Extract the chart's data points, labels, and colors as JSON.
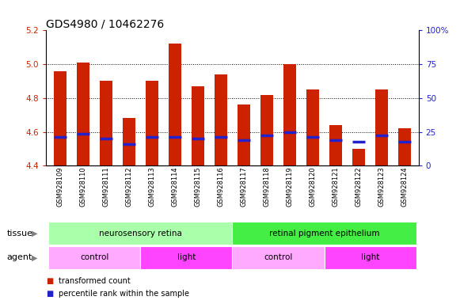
{
  "title": "GDS4980 / 10462276",
  "samples": [
    "GSM928109",
    "GSM928110",
    "GSM928111",
    "GSM928112",
    "GSM928113",
    "GSM928114",
    "GSM928115",
    "GSM928116",
    "GSM928117",
    "GSM928118",
    "GSM928119",
    "GSM928120",
    "GSM928121",
    "GSM928122",
    "GSM928123",
    "GSM928124"
  ],
  "bar_tops": [
    4.96,
    5.01,
    4.9,
    4.68,
    4.9,
    5.12,
    4.87,
    4.94,
    4.76,
    4.82,
    5.0,
    4.85,
    4.64,
    4.5,
    4.85,
    4.62
  ],
  "blue_vals": [
    4.57,
    4.59,
    4.56,
    4.53,
    4.57,
    4.57,
    4.56,
    4.57,
    4.55,
    4.58,
    4.6,
    4.57,
    4.55,
    4.54,
    4.58,
    4.54
  ],
  "bar_bottom": 4.4,
  "ylim_left": [
    4.4,
    5.2
  ],
  "ylim_right": [
    0,
    100
  ],
  "yticks_left": [
    4.4,
    4.6,
    4.8,
    5.0,
    5.2
  ],
  "yticks_right": [
    0,
    25,
    50,
    75,
    100
  ],
  "ytick_labels_right": [
    "0",
    "25",
    "50",
    "75",
    "100%"
  ],
  "bar_color": "#cc2200",
  "blue_color": "#2222cc",
  "tissue_groups": [
    {
      "label": "neurosensory retina",
      "start": 0,
      "end": 8,
      "color": "#aaffaa"
    },
    {
      "label": "retinal pigment epithelium",
      "start": 8,
      "end": 16,
      "color": "#44ee44"
    }
  ],
  "agent_groups": [
    {
      "label": "control",
      "start": 0,
      "end": 4,
      "color": "#ffaaff"
    },
    {
      "label": "light",
      "start": 4,
      "end": 8,
      "color": "#ff44ff"
    },
    {
      "label": "control",
      "start": 8,
      "end": 12,
      "color": "#ffaaff"
    },
    {
      "label": "light",
      "start": 12,
      "end": 16,
      "color": "#ff44ff"
    }
  ],
  "legend_items": [
    {
      "label": "transformed count",
      "color": "#cc2200"
    },
    {
      "label": "percentile rank within the sample",
      "color": "#2222cc"
    }
  ],
  "tissue_label": "tissue",
  "agent_label": "agent",
  "background_color": "#ffffff",
  "title_fontsize": 10,
  "tick_fontsize": 7.5,
  "bar_width": 0.55
}
